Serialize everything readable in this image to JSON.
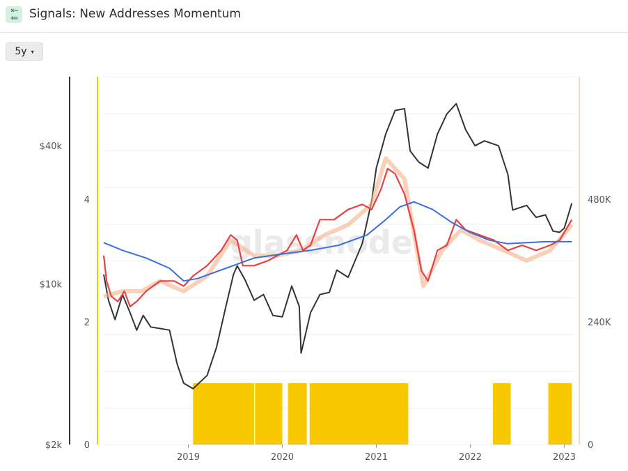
{
  "app": {
    "title": "Signals: New Addresses Momentum",
    "icon": "calculator-icon"
  },
  "controls": {
    "range_label": "5y",
    "range_caret": "▾"
  },
  "watermark": "glassnode",
  "chart_data": {
    "type": "line",
    "title": "Signals: New Addresses Momentum",
    "x_ticks": [
      "2019",
      "2020",
      "2021",
      "2022",
      "2023"
    ],
    "x_range": [
      2018.1,
      2023.1
    ],
    "price_axis": {
      "ticks": [
        "$2k",
        "$10k",
        "$40k"
      ],
      "scale": "log",
      "range": [
        2000,
        80000
      ]
    },
    "signal_axis": {
      "ticks": [
        "0",
        "2",
        "4"
      ],
      "range": [
        0,
        6
      ]
    },
    "addresses_axis": {
      "ticks": [
        "0",
        "240K",
        "480K"
      ],
      "range": [
        0,
        720000
      ]
    },
    "series": [
      {
        "color": "#333333",
        "axis": "price",
        "points": [
          [
            2018.1,
            11000
          ],
          [
            2018.15,
            8500
          ],
          [
            2018.22,
            7000
          ],
          [
            2018.3,
            9000
          ],
          [
            2018.38,
            7500
          ],
          [
            2018.45,
            6300
          ],
          [
            2018.52,
            7300
          ],
          [
            2018.6,
            6500
          ],
          [
            2018.7,
            6400
          ],
          [
            2018.8,
            6300
          ],
          [
            2018.88,
            4500
          ],
          [
            2018.95,
            3700
          ],
          [
            2019.05,
            3500
          ],
          [
            2019.2,
            4000
          ],
          [
            2019.3,
            5300
          ],
          [
            2019.4,
            8000
          ],
          [
            2019.48,
            11000
          ],
          [
            2019.52,
            12000
          ],
          [
            2019.6,
            10500
          ],
          [
            2019.7,
            8500
          ],
          [
            2019.8,
            9000
          ],
          [
            2019.9,
            7300
          ],
          [
            2020.0,
            7200
          ],
          [
            2020.1,
            9800
          ],
          [
            2020.18,
            8000
          ],
          [
            2020.2,
            5000
          ],
          [
            2020.3,
            7500
          ],
          [
            2020.4,
            9000
          ],
          [
            2020.5,
            9200
          ],
          [
            2020.58,
            11500
          ],
          [
            2020.7,
            10700
          ],
          [
            2020.85,
            15000
          ],
          [
            2020.95,
            23000
          ],
          [
            2021.0,
            32000
          ],
          [
            2021.1,
            45000
          ],
          [
            2021.2,
            57000
          ],
          [
            2021.3,
            58000
          ],
          [
            2021.36,
            38000
          ],
          [
            2021.45,
            34000
          ],
          [
            2021.55,
            32000
          ],
          [
            2021.65,
            45000
          ],
          [
            2021.75,
            55000
          ],
          [
            2021.85,
            61000
          ],
          [
            2021.95,
            47000
          ],
          [
            2022.05,
            40000
          ],
          [
            2022.15,
            42000
          ],
          [
            2022.3,
            40000
          ],
          [
            2022.4,
            30000
          ],
          [
            2022.45,
            21000
          ],
          [
            2022.6,
            22000
          ],
          [
            2022.7,
            19500
          ],
          [
            2022.8,
            20000
          ],
          [
            2022.88,
            17000
          ],
          [
            2022.95,
            16800
          ],
          [
            2023.0,
            17500
          ],
          [
            2023.08,
            22500
          ]
        ]
      },
      {
        "color": "#f5b38a",
        "axis": "addresses",
        "points": [
          [
            2018.1,
            290000
          ],
          [
            2018.3,
            300000
          ],
          [
            2018.5,
            300000
          ],
          [
            2018.7,
            320000
          ],
          [
            2018.95,
            300000
          ],
          [
            2019.2,
            330000
          ],
          [
            2019.45,
            400000
          ],
          [
            2019.7,
            370000
          ],
          [
            2019.95,
            370000
          ],
          [
            2020.2,
            380000
          ],
          [
            2020.45,
            410000
          ],
          [
            2020.7,
            430000
          ],
          [
            2020.95,
            470000
          ],
          [
            2021.1,
            560000
          ],
          [
            2021.3,
            520000
          ],
          [
            2021.5,
            310000
          ],
          [
            2021.7,
            380000
          ],
          [
            2021.9,
            420000
          ],
          [
            2022.1,
            400000
          ],
          [
            2022.35,
            380000
          ],
          [
            2022.6,
            360000
          ],
          [
            2022.85,
            380000
          ],
          [
            2023.08,
            430000
          ]
        ]
      },
      {
        "color": "#e84142",
        "axis": "addresses",
        "points": [
          [
            2018.1,
            370000
          ],
          [
            2018.13,
            320000
          ],
          [
            2018.18,
            290000
          ],
          [
            2018.25,
            280000
          ],
          [
            2018.32,
            300000
          ],
          [
            2018.38,
            270000
          ],
          [
            2018.45,
            280000
          ],
          [
            2018.55,
            300000
          ],
          [
            2018.7,
            320000
          ],
          [
            2018.85,
            320000
          ],
          [
            2018.95,
            310000
          ],
          [
            2019.05,
            330000
          ],
          [
            2019.2,
            350000
          ],
          [
            2019.35,
            380000
          ],
          [
            2019.45,
            410000
          ],
          [
            2019.52,
            400000
          ],
          [
            2019.58,
            350000
          ],
          [
            2019.7,
            350000
          ],
          [
            2019.85,
            360000
          ],
          [
            2019.95,
            370000
          ],
          [
            2020.05,
            380000
          ],
          [
            2020.15,
            410000
          ],
          [
            2020.22,
            380000
          ],
          [
            2020.3,
            390000
          ],
          [
            2020.4,
            440000
          ],
          [
            2020.55,
            440000
          ],
          [
            2020.7,
            460000
          ],
          [
            2020.85,
            470000
          ],
          [
            2020.95,
            460000
          ],
          [
            2021.05,
            500000
          ],
          [
            2021.12,
            540000
          ],
          [
            2021.2,
            530000
          ],
          [
            2021.3,
            490000
          ],
          [
            2021.4,
            420000
          ],
          [
            2021.48,
            340000
          ],
          [
            2021.55,
            320000
          ],
          [
            2021.65,
            380000
          ],
          [
            2021.75,
            390000
          ],
          [
            2021.85,
            440000
          ],
          [
            2021.95,
            420000
          ],
          [
            2022.1,
            410000
          ],
          [
            2022.25,
            400000
          ],
          [
            2022.4,
            380000
          ],
          [
            2022.55,
            390000
          ],
          [
            2022.7,
            380000
          ],
          [
            2022.85,
            390000
          ],
          [
            2022.95,
            400000
          ],
          [
            2023.08,
            440000
          ]
        ]
      },
      {
        "color": "#3b6fdc",
        "axis": "addresses",
        "points": [
          [
            2018.1,
            395000
          ],
          [
            2018.3,
            380000
          ],
          [
            2018.55,
            365000
          ],
          [
            2018.8,
            345000
          ],
          [
            2018.95,
            320000
          ],
          [
            2019.1,
            325000
          ],
          [
            2019.4,
            345000
          ],
          [
            2019.7,
            365000
          ],
          [
            2020.0,
            373000
          ],
          [
            2020.3,
            380000
          ],
          [
            2020.6,
            390000
          ],
          [
            2020.9,
            410000
          ],
          [
            2021.1,
            440000
          ],
          [
            2021.25,
            465000
          ],
          [
            2021.4,
            475000
          ],
          [
            2021.6,
            460000
          ],
          [
            2021.8,
            435000
          ],
          [
            2022.0,
            415000
          ],
          [
            2022.2,
            400000
          ],
          [
            2022.4,
            393000
          ],
          [
            2022.6,
            395000
          ],
          [
            2022.8,
            397000
          ],
          [
            2023.08,
            397000
          ]
        ]
      }
    ],
    "signal_periods": [
      [
        2019.05,
        2019.7
      ],
      [
        2019.71,
        2020.0
      ],
      [
        2020.06,
        2020.26
      ],
      [
        2020.29,
        2021.34
      ],
      [
        2022.24,
        2022.43
      ],
      [
        2022.83,
        2023.08
      ]
    ],
    "signal_color": "#f8c900"
  }
}
